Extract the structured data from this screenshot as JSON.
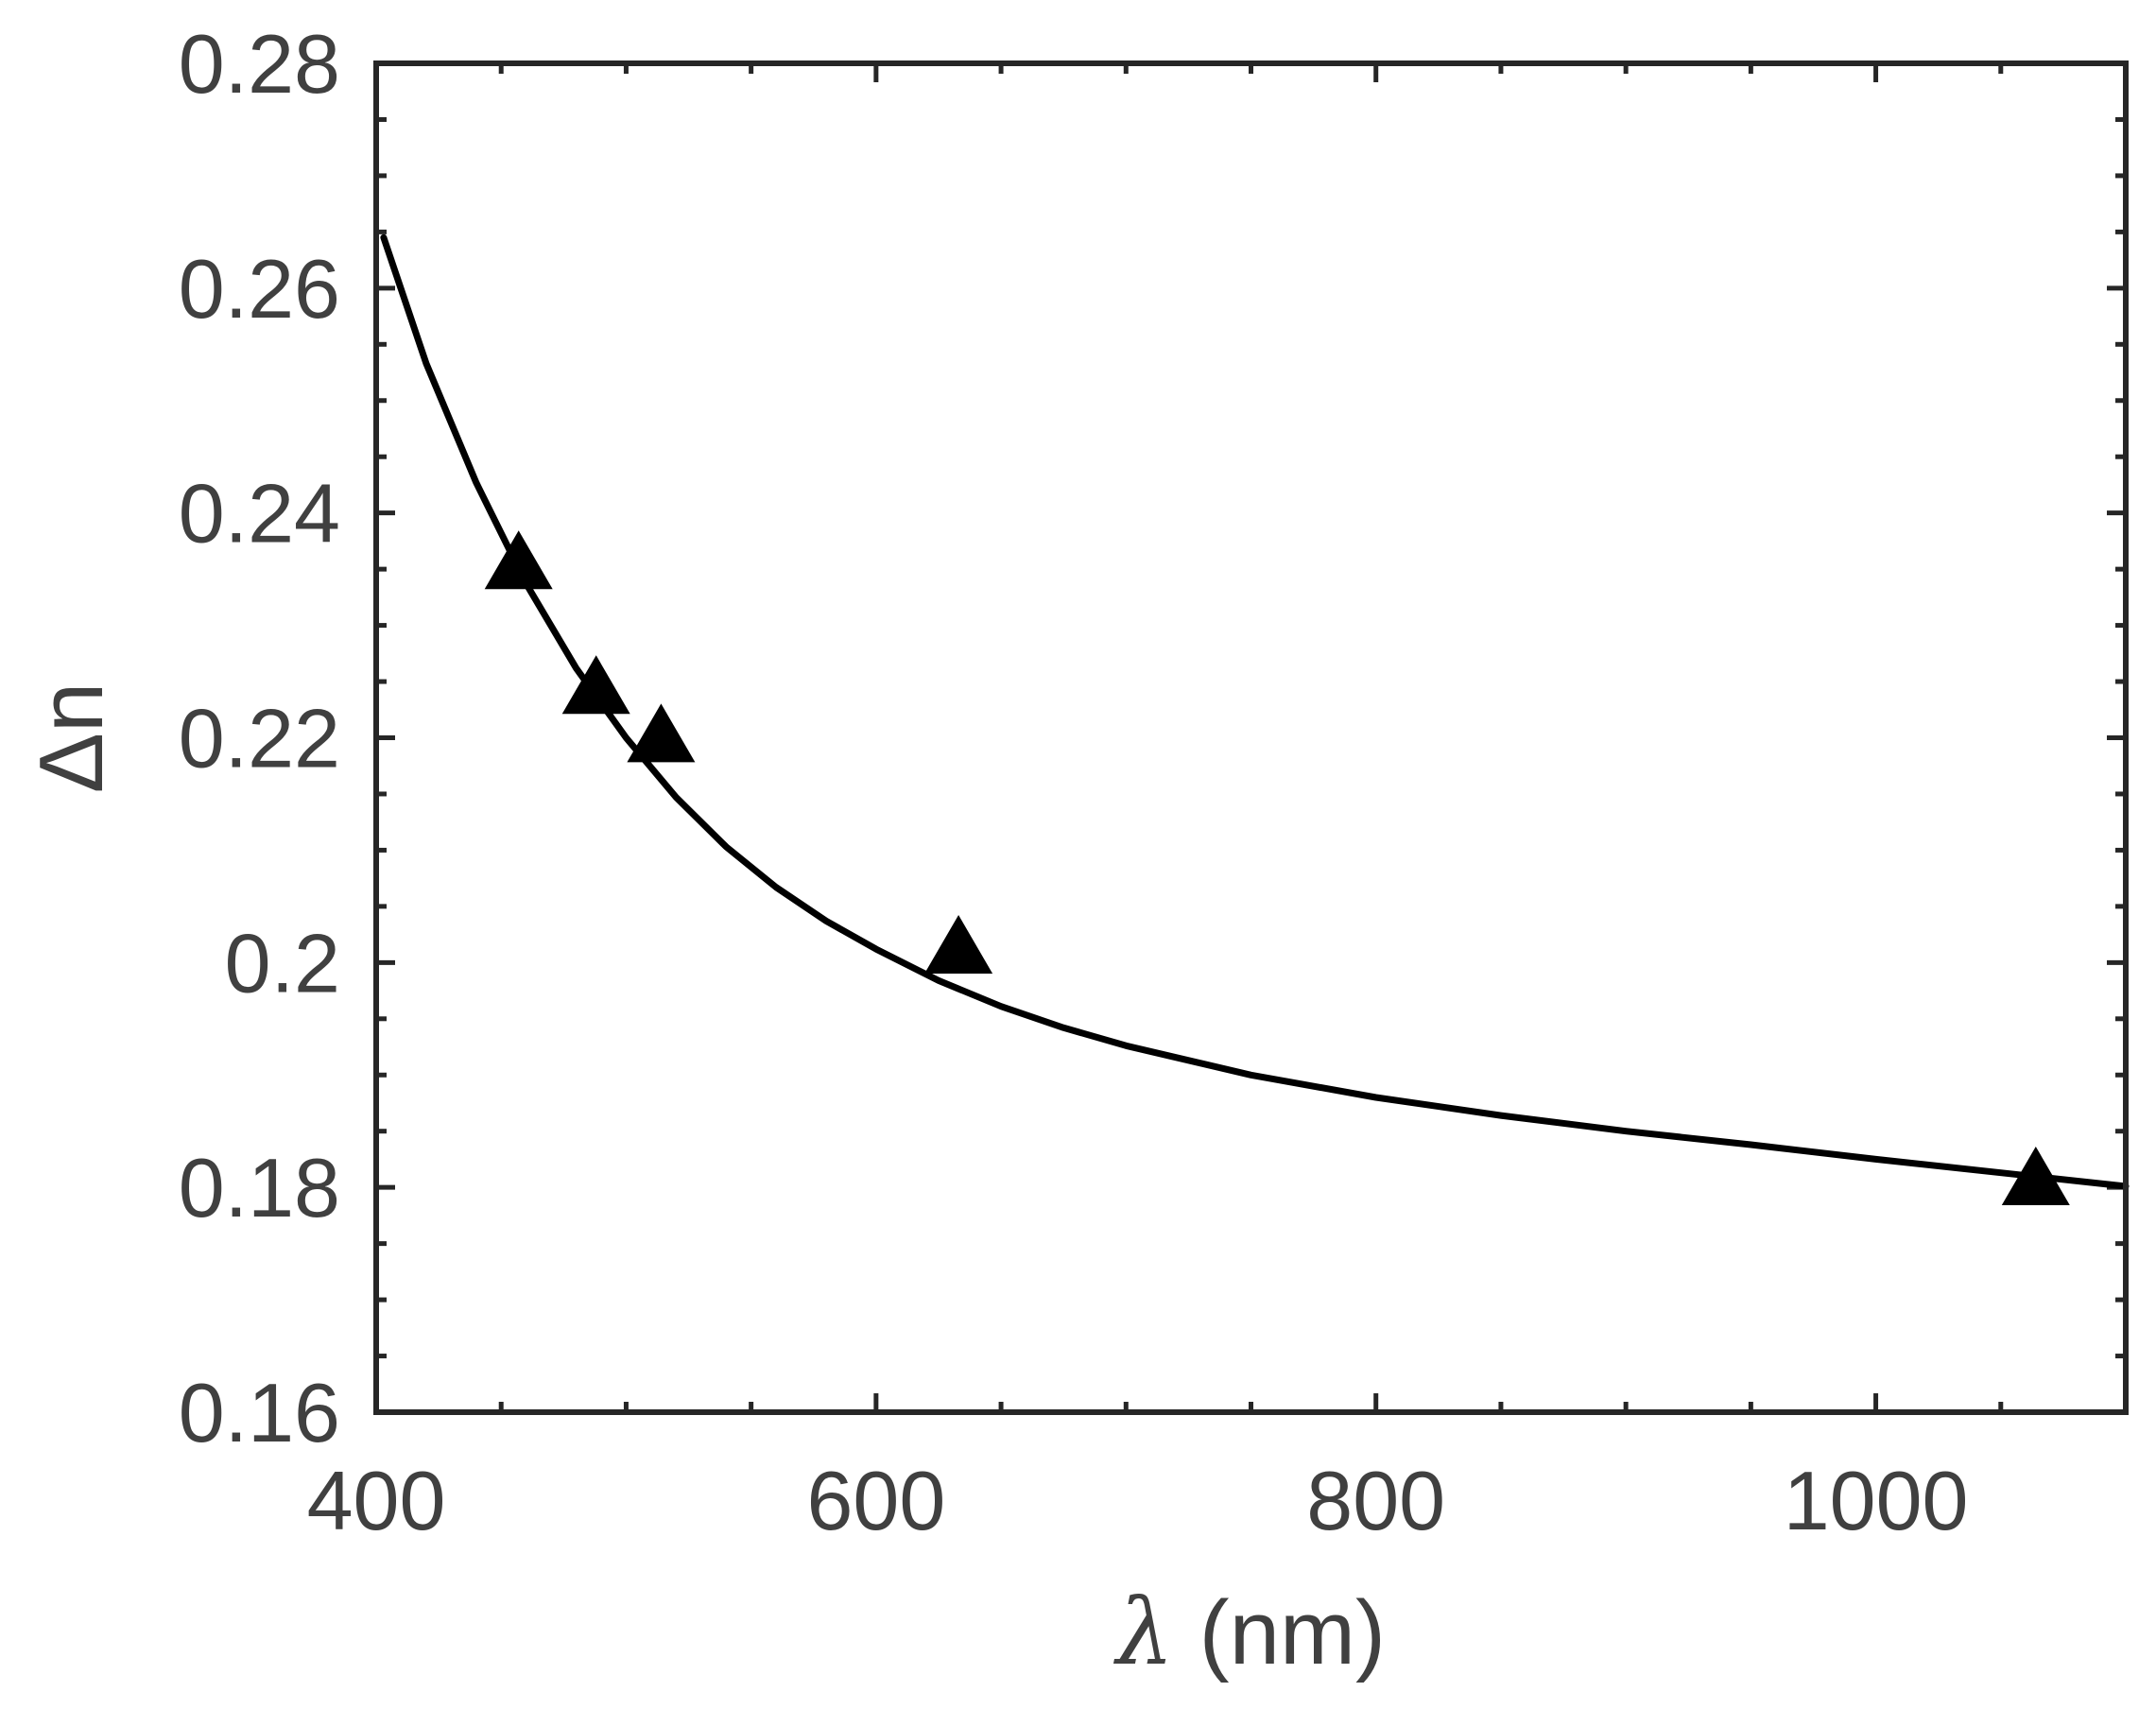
{
  "chart_data": {
    "type": "line",
    "title": "",
    "xlabel_symbol": "λ",
    "xlabel_unit": " (nm)",
    "ylabel": "Δn",
    "xlim": [
      400,
      1100
    ],
    "ylim": [
      0.16,
      0.28
    ],
    "x_ticks": [
      400,
      600,
      800,
      1000
    ],
    "x_tick_labels": [
      "400",
      "600",
      "800",
      "1000"
    ],
    "x_minor_step": 50,
    "y_ticks": [
      0.16,
      0.18,
      0.2,
      0.22,
      0.24,
      0.26,
      0.28
    ],
    "y_tick_labels": [
      "0.16",
      "0.18",
      "0.2",
      "0.22",
      "0.24",
      "0.26",
      "0.28"
    ],
    "y_minor_step": 0.005,
    "grid": false,
    "series": [
      {
        "kind": "markers",
        "marker": "triangle",
        "color": "#000000",
        "x": [
          457,
          488,
          514,
          633,
          1064
        ],
        "y": [
          0.2352,
          0.2241,
          0.2198,
          0.201,
          0.1804
        ]
      },
      {
        "kind": "fit-curve",
        "color": "#000000",
        "x": [
          403,
          420,
          440,
          460,
          480,
          500,
          520,
          540,
          560,
          580,
          600,
          625,
          650,
          675,
          700,
          750,
          800,
          850,
          900,
          950,
          1000,
          1050,
          1100
        ],
        "y": [
          0.2645,
          0.2533,
          0.2427,
          0.2337,
          0.2262,
          0.22,
          0.2147,
          0.2103,
          0.2067,
          0.2037,
          0.2012,
          0.1984,
          0.1961,
          0.1942,
          0.1926,
          0.19,
          0.188,
          0.1864,
          0.185,
          0.1838,
          0.1825,
          0.1813,
          0.1801
        ]
      }
    ]
  }
}
